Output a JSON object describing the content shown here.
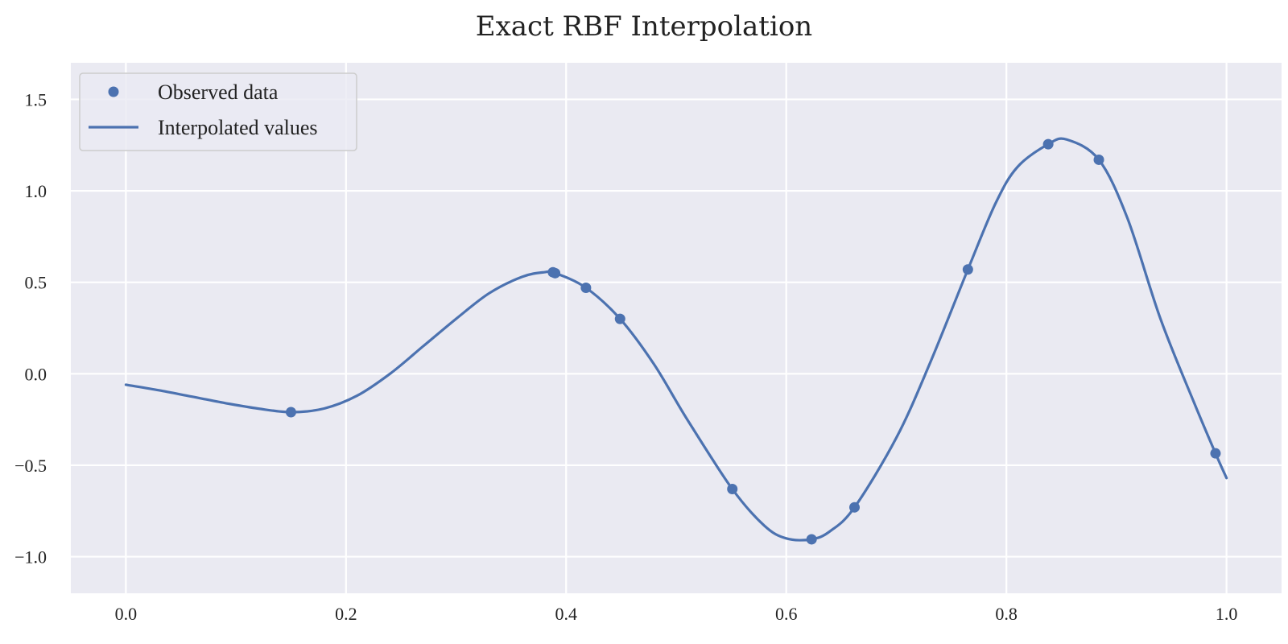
{
  "chart_data": {
    "type": "line",
    "title": "Exact RBF Interpolation",
    "xlabel": "",
    "ylabel": "",
    "xlim": [
      -0.05,
      1.05
    ],
    "ylim": [
      -1.2,
      1.7
    ],
    "grid": true,
    "legend_position": "top-left",
    "x_ticks": [
      0.0,
      0.2,
      0.4,
      0.6,
      0.8,
      1.0
    ],
    "x_tick_labels": [
      "0.0",
      "0.2",
      "0.4",
      "0.6",
      "0.8",
      "1.0"
    ],
    "y_ticks": [
      -1.0,
      -0.5,
      0.0,
      0.5,
      1.0,
      1.5
    ],
    "y_tick_labels": [
      "−1.0",
      "−0.5",
      "0.0",
      "0.5",
      "1.0",
      "1.5"
    ],
    "colors": {
      "series": "#4c72b0",
      "plot_background": "#eaeaf2",
      "grid": "#ffffff",
      "legend_border": "#cccccc"
    },
    "series": [
      {
        "name": "Observed data",
        "kind": "scatter",
        "x": [
          0.15,
          0.388,
          0.39,
          0.418,
          0.449,
          0.551,
          0.623,
          0.662,
          0.765,
          0.838,
          0.884,
          0.99
        ],
        "y": [
          -0.21,
          0.555,
          0.55,
          0.47,
          0.3,
          -0.63,
          -0.905,
          -0.73,
          0.57,
          1.255,
          1.17,
          -0.435
        ]
      },
      {
        "name": "Interpolated values",
        "kind": "line",
        "x": [
          0.0,
          0.03,
          0.06,
          0.09,
          0.12,
          0.15,
          0.18,
          0.21,
          0.24,
          0.27,
          0.3,
          0.33,
          0.36,
          0.38,
          0.39,
          0.418,
          0.449,
          0.48,
          0.51,
          0.551,
          0.58,
          0.6,
          0.623,
          0.64,
          0.662,
          0.7,
          0.73,
          0.765,
          0.79,
          0.81,
          0.838,
          0.855,
          0.884,
          0.91,
          0.94,
          0.97,
          0.99,
          1.0
        ],
        "y": [
          -0.06,
          -0.09,
          -0.125,
          -0.16,
          -0.19,
          -0.21,
          -0.19,
          -0.12,
          0.0,
          0.15,
          0.3,
          0.44,
          0.53,
          0.555,
          0.55,
          0.47,
          0.3,
          0.05,
          -0.25,
          -0.63,
          -0.83,
          -0.9,
          -0.905,
          -0.86,
          -0.73,
          -0.35,
          0.05,
          0.57,
          0.93,
          1.13,
          1.255,
          1.28,
          1.17,
          0.85,
          0.3,
          -0.15,
          -0.435,
          -0.57
        ]
      }
    ]
  }
}
